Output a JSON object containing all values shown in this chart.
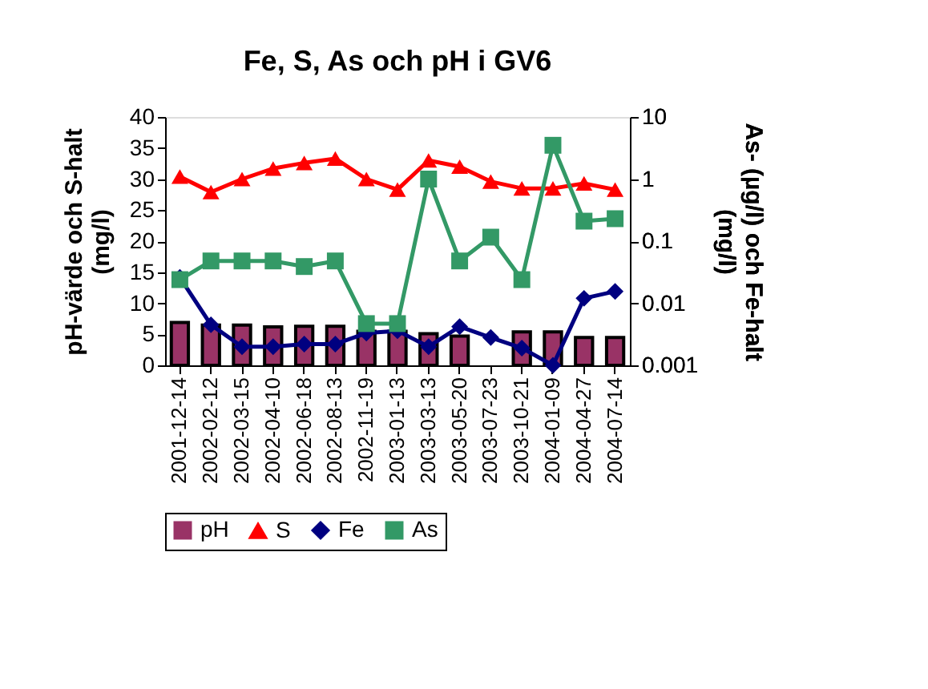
{
  "chart_data": {
    "type": "bar",
    "title": "Fe, S, As och pH i GV6",
    "ylabel": "pH-värde och S-halt\n(mg/l)",
    "y2label": "As- (µg/l) och Fe-halt\n(mg/l)",
    "categories": [
      "2001-12-14",
      "2002-02-12",
      "2002-03-15",
      "2002-04-10",
      "2002-06-18",
      "2002-08-13",
      "2002-11-19",
      "2003-01-13",
      "2003-03-13",
      "2003-05-20",
      "2003-07-23",
      "2003-10-21",
      "2004-01-09",
      "2004-04-27",
      "2004-07-14"
    ],
    "series": [
      {
        "name": "pH",
        "color": "#993366",
        "values": [
          6.9,
          6.5,
          6.5,
          6.2,
          6.3,
          6.3,
          5.5,
          5.5,
          5.1,
          4.7,
          null,
          5.4,
          5.4,
          4.5,
          4.5
        ]
      },
      {
        "name": "S",
        "type": "line",
        "marker": "triangle",
        "color": "#ff0000",
        "values": [
          30.4,
          27.9,
          30,
          31.7,
          32.6,
          33.3,
          30,
          28.3,
          33,
          32,
          29.6,
          28.5,
          28.5,
          29.3,
          28.3
        ]
      },
      {
        "name": "Fe",
        "type": "line",
        "marker": "diamond",
        "axis": "y2",
        "color": "#000080",
        "values": [
          0.026,
          0.0045,
          0.002,
          0.002,
          0.0022,
          0.0022,
          0.0033,
          0.0036,
          0.002,
          0.0042,
          0.0028,
          0.0019,
          0.001,
          0.012,
          0.0155
        ]
      },
      {
        "name": "As",
        "type": "line",
        "marker": "square",
        "axis": "y2",
        "color": "#339966",
        "values": [
          0.024,
          0.048,
          0.048,
          0.048,
          0.039,
          0.048,
          0.0047,
          0.0047,
          1.0,
          0.048,
          0.116,
          0.024,
          3.5,
          0.21,
          0.23
        ]
      }
    ],
    "ylim": [
      0,
      40
    ],
    "yticks": [
      0,
      5,
      10,
      15,
      20,
      25,
      30,
      35,
      40
    ],
    "y2lim": [
      0.001,
      10
    ],
    "y2ticks": [
      {
        "value": 0.001,
        "label": "0.001"
      },
      {
        "value": 0.01,
        "label": "0.01"
      },
      {
        "value": 0.1,
        "label": "0.1"
      },
      {
        "value": 1,
        "label": "1"
      },
      {
        "value": 10,
        "label": "10"
      }
    ],
    "log": "y2",
    "grid": false,
    "legend": "bottom"
  }
}
